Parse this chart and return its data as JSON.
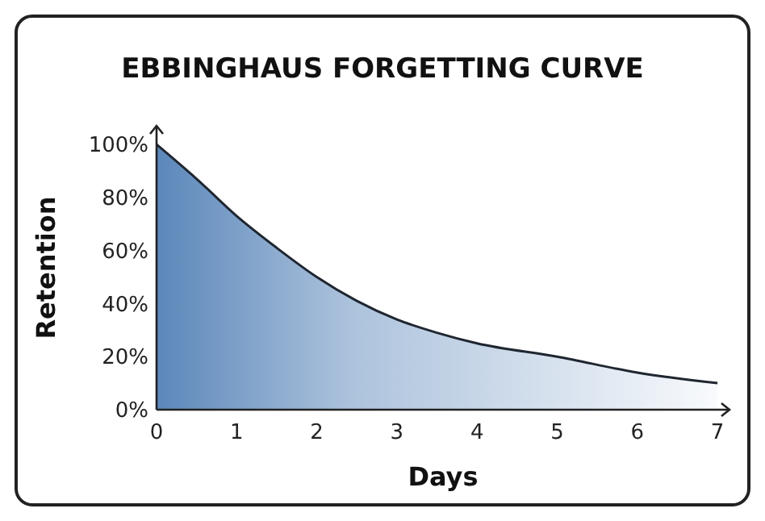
{
  "chart_data": {
    "type": "area",
    "title": "EBBINGHAUS FORGETTING CURVE",
    "xlabel": "Days",
    "ylabel": "Retention",
    "x": [
      0,
      0.5,
      1,
      1.5,
      2,
      2.5,
      3,
      3.5,
      4,
      5,
      6,
      7
    ],
    "series": [
      {
        "color": "#5b87ba",
        "values": [
          100,
          87,
          73,
          61,
          50,
          41,
          34,
          29,
          25,
          20,
          14,
          10
        ]
      }
    ],
    "xlim": [
      0,
      7.15
    ],
    "xticks": [
      0,
      1,
      2,
      3,
      4,
      5,
      6,
      7
    ],
    "ylim": [
      0,
      107
    ],
    "yticks": [
      {
        "value": 0,
        "label": "0%"
      },
      {
        "value": 20,
        "label": "20%"
      },
      {
        "value": 40,
        "label": "40%"
      },
      {
        "value": 60,
        "label": "60%"
      },
      {
        "value": 80,
        "label": "80%"
      },
      {
        "value": 100,
        "label": "100%"
      }
    ],
    "grid": false
  }
}
